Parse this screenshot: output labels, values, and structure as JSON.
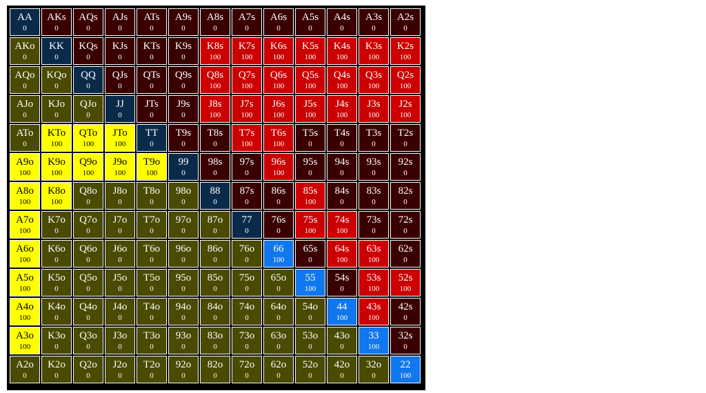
{
  "colors": {
    "pair": "#0a2a4a",
    "suited": "#3a0000",
    "offsuit": "#4a4a00",
    "suited_raise": "#cc0000",
    "offsuit_raise": "#ffff00",
    "pair_raise": "#1177ee"
  },
  "grid": [
    [
      [
        "AA",
        "0",
        "pair"
      ],
      [
        "AKs",
        "0",
        "suited"
      ],
      [
        "AQs",
        "0",
        "suited"
      ],
      [
        "AJs",
        "0",
        "suited"
      ],
      [
        "ATs",
        "0",
        "suited"
      ],
      [
        "A9s",
        "0",
        "suited"
      ],
      [
        "A8s",
        "0",
        "suited"
      ],
      [
        "A7s",
        "0",
        "suited"
      ],
      [
        "A6s",
        "0",
        "suited"
      ],
      [
        "A5s",
        "0",
        "suited"
      ],
      [
        "A4s",
        "0",
        "suited"
      ],
      [
        "A3s",
        "0",
        "suited"
      ],
      [
        "A2s",
        "0",
        "suited"
      ]
    ],
    [
      [
        "AKo",
        "0",
        "offsuit"
      ],
      [
        "KK",
        "0",
        "pair"
      ],
      [
        "KQs",
        "0",
        "suited"
      ],
      [
        "KJs",
        "0",
        "suited"
      ],
      [
        "KTs",
        "0",
        "suited"
      ],
      [
        "K9s",
        "0",
        "suited"
      ],
      [
        "K8s",
        "100",
        "suited_raise"
      ],
      [
        "K7s",
        "100",
        "suited_raise"
      ],
      [
        "K6s",
        "100",
        "suited_raise"
      ],
      [
        "K5s",
        "100",
        "suited_raise"
      ],
      [
        "K4s",
        "100",
        "suited_raise"
      ],
      [
        "K3s",
        "100",
        "suited_raise"
      ],
      [
        "K2s",
        "100",
        "suited_raise"
      ]
    ],
    [
      [
        "AQo",
        "0",
        "offsuit"
      ],
      [
        "KQo",
        "0",
        "offsuit"
      ],
      [
        "QQ",
        "0",
        "pair"
      ],
      [
        "QJs",
        "0",
        "suited"
      ],
      [
        "QTs",
        "0",
        "suited"
      ],
      [
        "Q9s",
        "0",
        "suited"
      ],
      [
        "Q8s",
        "100",
        "suited_raise"
      ],
      [
        "Q7s",
        "100",
        "suited_raise"
      ],
      [
        "Q6s",
        "100",
        "suited_raise"
      ],
      [
        "Q5s",
        "100",
        "suited_raise"
      ],
      [
        "Q4s",
        "100",
        "suited_raise"
      ],
      [
        "Q3s",
        "100",
        "suited_raise"
      ],
      [
        "Q2s",
        "100",
        "suited_raise"
      ]
    ],
    [
      [
        "AJo",
        "0",
        "offsuit"
      ],
      [
        "KJo",
        "0",
        "offsuit"
      ],
      [
        "QJo",
        "0",
        "offsuit"
      ],
      [
        "JJ",
        "0",
        "pair"
      ],
      [
        "JTs",
        "0",
        "suited"
      ],
      [
        "J9s",
        "0",
        "suited"
      ],
      [
        "J8s",
        "100",
        "suited_raise"
      ],
      [
        "J7s",
        "100",
        "suited_raise"
      ],
      [
        "J6s",
        "100",
        "suited_raise"
      ],
      [
        "J5s",
        "100",
        "suited_raise"
      ],
      [
        "J4s",
        "100",
        "suited_raise"
      ],
      [
        "J3s",
        "100",
        "suited_raise"
      ],
      [
        "J2s",
        "100",
        "suited_raise"
      ]
    ],
    [
      [
        "ATo",
        "0",
        "offsuit"
      ],
      [
        "KTo",
        "100",
        "offsuit_raise"
      ],
      [
        "QTo",
        "100",
        "offsuit_raise"
      ],
      [
        "JTo",
        "100",
        "offsuit_raise"
      ],
      [
        "TT",
        "0",
        "pair"
      ],
      [
        "T9s",
        "0",
        "suited"
      ],
      [
        "T8s",
        "0",
        "suited"
      ],
      [
        "T7s",
        "100",
        "suited_raise"
      ],
      [
        "T6s",
        "100",
        "suited_raise"
      ],
      [
        "T5s",
        "0",
        "suited"
      ],
      [
        "T4s",
        "0",
        "suited"
      ],
      [
        "T3s",
        "0",
        "suited"
      ],
      [
        "T2s",
        "0",
        "suited"
      ]
    ],
    [
      [
        "A9o",
        "100",
        "offsuit_raise"
      ],
      [
        "K9o",
        "100",
        "offsuit_raise"
      ],
      [
        "Q9o",
        "100",
        "offsuit_raise"
      ],
      [
        "J9o",
        "100",
        "offsuit_raise"
      ],
      [
        "T9o",
        "100",
        "offsuit_raise"
      ],
      [
        "99",
        "0",
        "pair"
      ],
      [
        "98s",
        "0",
        "suited"
      ],
      [
        "97s",
        "0",
        "suited"
      ],
      [
        "96s",
        "100",
        "suited_raise"
      ],
      [
        "95s",
        "0",
        "suited"
      ],
      [
        "94s",
        "0",
        "suited"
      ],
      [
        "93s",
        "0",
        "suited"
      ],
      [
        "92s",
        "0",
        "suited"
      ]
    ],
    [
      [
        "A8o",
        "100",
        "offsuit_raise"
      ],
      [
        "K8o",
        "100",
        "offsuit_raise"
      ],
      [
        "Q8o",
        "0",
        "offsuit"
      ],
      [
        "J8o",
        "0",
        "offsuit"
      ],
      [
        "T8o",
        "0",
        "offsuit"
      ],
      [
        "98o",
        "0",
        "offsuit"
      ],
      [
        "88",
        "0",
        "pair"
      ],
      [
        "87s",
        "0",
        "suited"
      ],
      [
        "86s",
        "0",
        "suited"
      ],
      [
        "85s",
        "100",
        "suited_raise"
      ],
      [
        "84s",
        "0",
        "suited"
      ],
      [
        "83s",
        "0",
        "suited"
      ],
      [
        "82s",
        "0",
        "suited"
      ]
    ],
    [
      [
        "A7o",
        "100",
        "offsuit_raise"
      ],
      [
        "K7o",
        "0",
        "offsuit"
      ],
      [
        "Q7o",
        "0",
        "offsuit"
      ],
      [
        "J7o",
        "0",
        "offsuit"
      ],
      [
        "T7o",
        "0",
        "offsuit"
      ],
      [
        "97o",
        "0",
        "offsuit"
      ],
      [
        "87o",
        "0",
        "offsuit"
      ],
      [
        "77",
        "0",
        "pair"
      ],
      [
        "76s",
        "0",
        "suited"
      ],
      [
        "75s",
        "100",
        "suited_raise"
      ],
      [
        "74s",
        "100",
        "suited_raise"
      ],
      [
        "73s",
        "0",
        "suited"
      ],
      [
        "72s",
        "0",
        "suited"
      ]
    ],
    [
      [
        "A6o",
        "100",
        "offsuit_raise"
      ],
      [
        "K6o",
        "0",
        "offsuit"
      ],
      [
        "Q6o",
        "0",
        "offsuit"
      ],
      [
        "J6o",
        "0",
        "offsuit"
      ],
      [
        "T6o",
        "0",
        "offsuit"
      ],
      [
        "96o",
        "0",
        "offsuit"
      ],
      [
        "86o",
        "0",
        "offsuit"
      ],
      [
        "76o",
        "0",
        "offsuit"
      ],
      [
        "66",
        "100",
        "pair_raise"
      ],
      [
        "65s",
        "0",
        "suited"
      ],
      [
        "64s",
        "100",
        "suited_raise"
      ],
      [
        "63s",
        "100",
        "suited_raise"
      ],
      [
        "62s",
        "0",
        "suited"
      ]
    ],
    [
      [
        "A5o",
        "100",
        "offsuit_raise"
      ],
      [
        "K5o",
        "0",
        "offsuit"
      ],
      [
        "Q5o",
        "0",
        "offsuit"
      ],
      [
        "J5o",
        "0",
        "offsuit"
      ],
      [
        "T5o",
        "0",
        "offsuit"
      ],
      [
        "95o",
        "0",
        "offsuit"
      ],
      [
        "85o",
        "0",
        "offsuit"
      ],
      [
        "75o",
        "0",
        "offsuit"
      ],
      [
        "65o",
        "0",
        "offsuit"
      ],
      [
        "55",
        "100",
        "pair_raise"
      ],
      [
        "54s",
        "0",
        "suited"
      ],
      [
        "53s",
        "100",
        "suited_raise"
      ],
      [
        "52s",
        "100",
        "suited_raise"
      ]
    ],
    [
      [
        "A4o",
        "100",
        "offsuit_raise"
      ],
      [
        "K4o",
        "0",
        "offsuit"
      ],
      [
        "Q4o",
        "0",
        "offsuit"
      ],
      [
        "J4o",
        "0",
        "offsuit"
      ],
      [
        "T4o",
        "0",
        "offsuit"
      ],
      [
        "94o",
        "0",
        "offsuit"
      ],
      [
        "84o",
        "0",
        "offsuit"
      ],
      [
        "74o",
        "0",
        "offsuit"
      ],
      [
        "64o",
        "0",
        "offsuit"
      ],
      [
        "54o",
        "0",
        "offsuit"
      ],
      [
        "44",
        "100",
        "pair_raise"
      ],
      [
        "43s",
        "100",
        "suited_raise"
      ],
      [
        "42s",
        "0",
        "suited"
      ]
    ],
    [
      [
        "A3o",
        "100",
        "offsuit_raise"
      ],
      [
        "K3o",
        "0",
        "offsuit"
      ],
      [
        "Q3o",
        "0",
        "offsuit"
      ],
      [
        "J3o",
        "0",
        "offsuit"
      ],
      [
        "T3o",
        "0",
        "offsuit"
      ],
      [
        "93o",
        "0",
        "offsuit"
      ],
      [
        "83o",
        "0",
        "offsuit"
      ],
      [
        "73o",
        "0",
        "offsuit"
      ],
      [
        "63o",
        "0",
        "offsuit"
      ],
      [
        "53o",
        "0",
        "offsuit"
      ],
      [
        "43o",
        "0",
        "offsuit"
      ],
      [
        "33",
        "100",
        "pair_raise"
      ],
      [
        "32s",
        "0",
        "suited"
      ]
    ],
    [
      [
        "A2o",
        "0",
        "offsuit"
      ],
      [
        "K2o",
        "0",
        "offsuit"
      ],
      [
        "Q2o",
        "0",
        "offsuit"
      ],
      [
        "J2o",
        "0",
        "offsuit"
      ],
      [
        "T2o",
        "0",
        "offsuit"
      ],
      [
        "92o",
        "0",
        "offsuit"
      ],
      [
        "82o",
        "0",
        "offsuit"
      ],
      [
        "72o",
        "0",
        "offsuit"
      ],
      [
        "62o",
        "0",
        "offsuit"
      ],
      [
        "52o",
        "0",
        "offsuit"
      ],
      [
        "42o",
        "0",
        "offsuit"
      ],
      [
        "32o",
        "0",
        "offsuit"
      ],
      [
        "22",
        "100",
        "pair_raise"
      ]
    ]
  ]
}
